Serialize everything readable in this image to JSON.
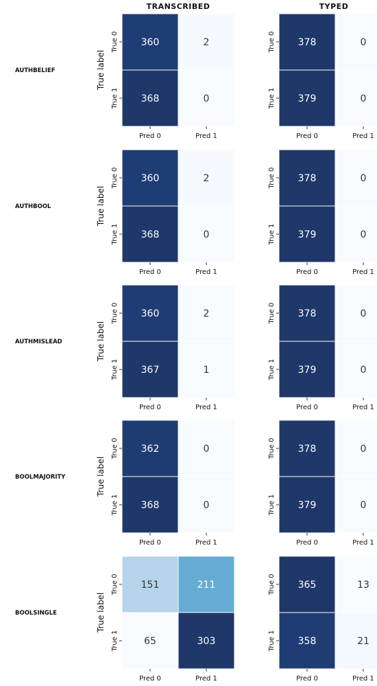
{
  "chart_data": {
    "type": "heatmap",
    "columns": [
      "TRANSCRIBED",
      "TYPED"
    ],
    "row_labels": [
      "AUTHBELIEF",
      "AUTHBOOL",
      "AUTHMISLEAD",
      "BOOLMAJORITY",
      "BOOLSINGLE"
    ],
    "ylabel": "True label",
    "x_tick_labels": [
      "Pred 0",
      "Pred 1"
    ],
    "y_tick_labels": [
      "True 0",
      "True 1"
    ],
    "colormap": "Blues",
    "matrices": [
      [
        [
          [
            360,
            2
          ],
          [
            368,
            0
          ]
        ],
        [
          [
            378,
            0
          ],
          [
            379,
            0
          ]
        ]
      ],
      [
        [
          [
            360,
            2
          ],
          [
            368,
            0
          ]
        ],
        [
          [
            378,
            0
          ],
          [
            379,
            0
          ]
        ]
      ],
      [
        [
          [
            360,
            2
          ],
          [
            367,
            1
          ]
        ],
        [
          [
            378,
            0
          ],
          [
            379,
            0
          ]
        ]
      ],
      [
        [
          [
            362,
            0
          ],
          [
            368,
            0
          ]
        ],
        [
          [
            378,
            0
          ],
          [
            379,
            0
          ]
        ]
      ],
      [
        [
          [
            151,
            211
          ],
          [
            65,
            303
          ]
        ],
        [
          [
            365,
            13
          ],
          [
            358,
            21
          ]
        ]
      ]
    ]
  }
}
